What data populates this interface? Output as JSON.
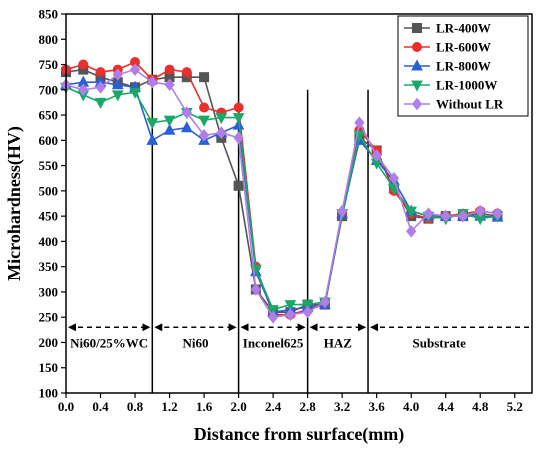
{
  "chart_data": {
    "type": "line",
    "title": "",
    "xlabel": "Distance from surface(mm)",
    "ylabel": "Microhardness(HV)",
    "xlim": [
      0.0,
      5.4
    ],
    "ylim": [
      100,
      850
    ],
    "xticks": [
      "0.0",
      "0.4",
      "0.8",
      "1.2",
      "1.6",
      "2.0",
      "2.4",
      "2.8",
      "3.2",
      "3.6",
      "4.0",
      "4.4",
      "4.8",
      "5.2"
    ],
    "yticks": [
      "100",
      "150",
      "200",
      "250",
      "300",
      "350",
      "400",
      "450",
      "500",
      "550",
      "600",
      "650",
      "700",
      "750",
      "800",
      "850"
    ],
    "legend_position": "top-right",
    "x": [
      0.0,
      0.2,
      0.4,
      0.6,
      0.8,
      1.0,
      1.2,
      1.4,
      1.6,
      1.8,
      2.0,
      2.2,
      2.4,
      2.6,
      2.8,
      3.0,
      3.2,
      3.4,
      3.6,
      3.8,
      4.0,
      4.2,
      4.4,
      4.6,
      4.8,
      5.0
    ],
    "series": [
      {
        "name": "LR-400W",
        "color": "#555555",
        "marker": "square",
        "values": [
          735,
          740,
          725,
          715,
          705,
          720,
          725,
          725,
          725,
          605,
          510,
          305,
          260,
          260,
          275,
          275,
          450,
          605,
          580,
          505,
          450,
          445,
          450,
          450,
          455,
          450
        ]
      },
      {
        "name": "LR-600W",
        "color": "#e8302e",
        "marker": "circle",
        "values": [
          740,
          750,
          735,
          740,
          755,
          720,
          740,
          735,
          665,
          655,
          665,
          350,
          255,
          255,
          265,
          275,
          455,
          620,
          580,
          500,
          455,
          445,
          450,
          455,
          460,
          455
        ]
      },
      {
        "name": "LR-800W",
        "color": "#2a5fd6",
        "marker": "triangle-up",
        "values": [
          710,
          715,
          715,
          710,
          705,
          600,
          620,
          625,
          600,
          615,
          630,
          340,
          260,
          265,
          270,
          275,
          455,
          600,
          560,
          520,
          460,
          450,
          450,
          450,
          450,
          448
        ]
      },
      {
        "name": "LR-1000W",
        "color": "#1aa868",
        "marker": "triangle-down",
        "values": [
          705,
          690,
          675,
          690,
          695,
          635,
          640,
          655,
          640,
          645,
          645,
          345,
          265,
          275,
          275,
          280,
          455,
          610,
          555,
          505,
          460,
          450,
          445,
          455,
          445,
          450
        ]
      },
      {
        "name": "Without LR",
        "color": "#b07ee8",
        "marker": "diamond",
        "values": [
          710,
          700,
          705,
          730,
          740,
          715,
          710,
          655,
          610,
          615,
          605,
          305,
          250,
          255,
          260,
          280,
          460,
          635,
          570,
          525,
          420,
          455,
          450,
          450,
          460,
          455
        ]
      }
    ],
    "region_boundaries": [
      1.0,
      2.0,
      2.8,
      3.5
    ],
    "regions": [
      {
        "label": "Ni60/25%WC",
        "from": 0.0,
        "to": 1.0
      },
      {
        "label": "Ni60",
        "from": 1.0,
        "to": 2.0
      },
      {
        "label": "Inconel625",
        "from": 2.0,
        "to": 2.8
      },
      {
        "label": "HAZ",
        "from": 2.8,
        "to": 3.5
      },
      {
        "label": "Substrate",
        "from": 3.5,
        "to": 5.4
      }
    ],
    "region_arrow_y": 230
  }
}
